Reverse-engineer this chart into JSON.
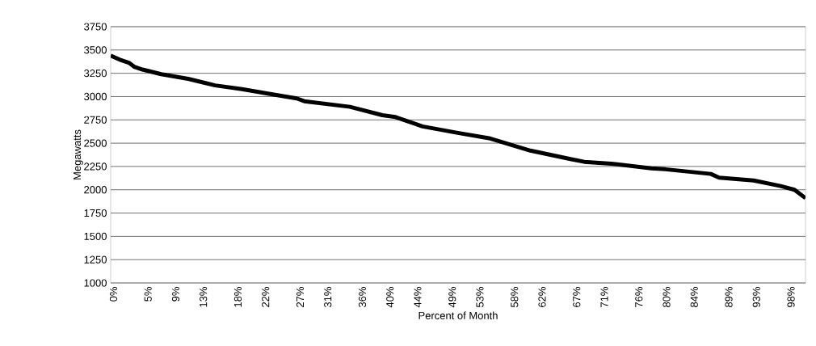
{
  "chart_data": {
    "type": "line",
    "xlabel": "Percent of Month",
    "ylabel": "Megawatts",
    "xlim": [
      -0.4,
      100.1
    ],
    "ylim": [
      1000,
      3750
    ],
    "xticks": [
      {
        "value": 0,
        "label": "0%"
      },
      {
        "value": 5,
        "label": "5%"
      },
      {
        "value": 9,
        "label": "9%"
      },
      {
        "value": 13,
        "label": "13%"
      },
      {
        "value": 18,
        "label": "18%"
      },
      {
        "value": 22,
        "label": "22%"
      },
      {
        "value": 27,
        "label": "27%"
      },
      {
        "value": 31,
        "label": "31%"
      },
      {
        "value": 36,
        "label": "36%"
      },
      {
        "value": 40,
        "label": "40%"
      },
      {
        "value": 44,
        "label": "44%"
      },
      {
        "value": 49,
        "label": "49%"
      },
      {
        "value": 53,
        "label": "53%"
      },
      {
        "value": 58,
        "label": "58%"
      },
      {
        "value": 62,
        "label": "62%"
      },
      {
        "value": 67,
        "label": "67%"
      },
      {
        "value": 71,
        "label": "71%"
      },
      {
        "value": 76,
        "label": "76%"
      },
      {
        "value": 80,
        "label": "80%"
      },
      {
        "value": 84,
        "label": "84%"
      },
      {
        "value": 89,
        "label": "89%"
      },
      {
        "value": 93,
        "label": "93%"
      },
      {
        "value": 98,
        "label": "98%"
      }
    ],
    "yticks": [
      1000,
      1250,
      1500,
      1750,
      2000,
      2250,
      2500,
      2750,
      3000,
      3250,
      3500,
      3750
    ],
    "grid": "y",
    "marker": "none",
    "line_style": "solid",
    "series": [
      {
        "color": "#000000",
        "x": [
          -0.4,
          1.1,
          2.3,
          3.0,
          4.2,
          6.9,
          10.8,
          14.7,
          18.6,
          22.5,
          26.5,
          27.6,
          34.2,
          38.9,
          40.8,
          44.7,
          49.8,
          54.5,
          60.3,
          66.1,
          68.1,
          72.0,
          77.8,
          79.8,
          86.4,
          87.6,
          92.6,
          96.5,
          98.5,
          100.1
        ],
        "values": [
          3440,
          3390,
          3360,
          3320,
          3290,
          3240,
          3190,
          3120,
          3080,
          3030,
          2980,
          2950,
          2890,
          2800,
          2780,
          2680,
          2610,
          2550,
          2420,
          2330,
          2300,
          2280,
          2230,
          2220,
          2170,
          2130,
          2100,
          2040,
          2000,
          1910
        ]
      }
    ]
  }
}
